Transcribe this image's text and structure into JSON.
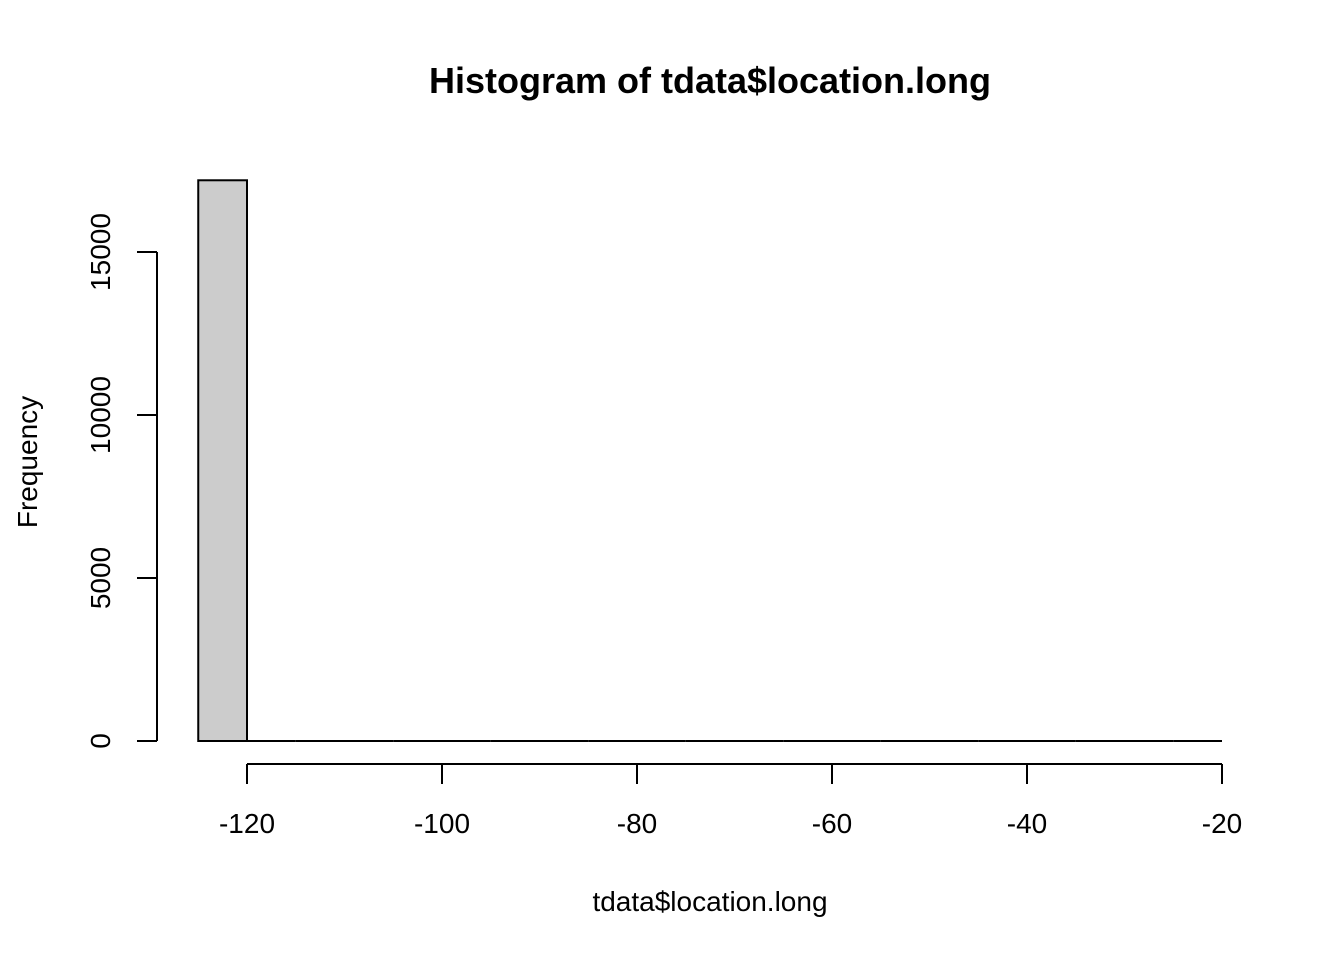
{
  "chart_data": {
    "type": "bar",
    "title": "Histogram of tdata$location.long",
    "xlabel": "tdata$location.long",
    "ylabel": "Frequency",
    "bin_width": 5,
    "bins": [
      {
        "start": -125,
        "end": -120,
        "count": 17200
      },
      {
        "start": -120,
        "end": -115,
        "count": 0
      },
      {
        "start": -115,
        "end": -110,
        "count": 0
      },
      {
        "start": -110,
        "end": -105,
        "count": 0
      },
      {
        "start": -105,
        "end": -100,
        "count": 0
      },
      {
        "start": -100,
        "end": -95,
        "count": 0
      },
      {
        "start": -95,
        "end": -90,
        "count": 0
      },
      {
        "start": -90,
        "end": -85,
        "count": 0
      },
      {
        "start": -85,
        "end": -80,
        "count": 0
      },
      {
        "start": -80,
        "end": -75,
        "count": 0
      },
      {
        "start": -75,
        "end": -70,
        "count": 0
      },
      {
        "start": -70,
        "end": -65,
        "count": 0
      },
      {
        "start": -65,
        "end": -60,
        "count": 0
      },
      {
        "start": -60,
        "end": -55,
        "count": 0
      },
      {
        "start": -55,
        "end": -50,
        "count": 0
      },
      {
        "start": -50,
        "end": -45,
        "count": 0
      },
      {
        "start": -45,
        "end": -40,
        "count": 0
      },
      {
        "start": -40,
        "end": -35,
        "count": 0
      },
      {
        "start": -35,
        "end": -30,
        "count": 0
      },
      {
        "start": -30,
        "end": -25,
        "count": 0
      },
      {
        "start": -25,
        "end": -20,
        "count": 0
      }
    ],
    "x_ticks": [
      -120,
      -100,
      -80,
      -60,
      -40,
      -20
    ],
    "y_ticks": [
      0,
      5000,
      10000,
      15000
    ],
    "xlim": [
      -125,
      -20
    ],
    "ylim": [
      0,
      17200
    ],
    "bar_fill": "#cccccc",
    "bar_stroke": "#000000",
    "grid": false
  }
}
